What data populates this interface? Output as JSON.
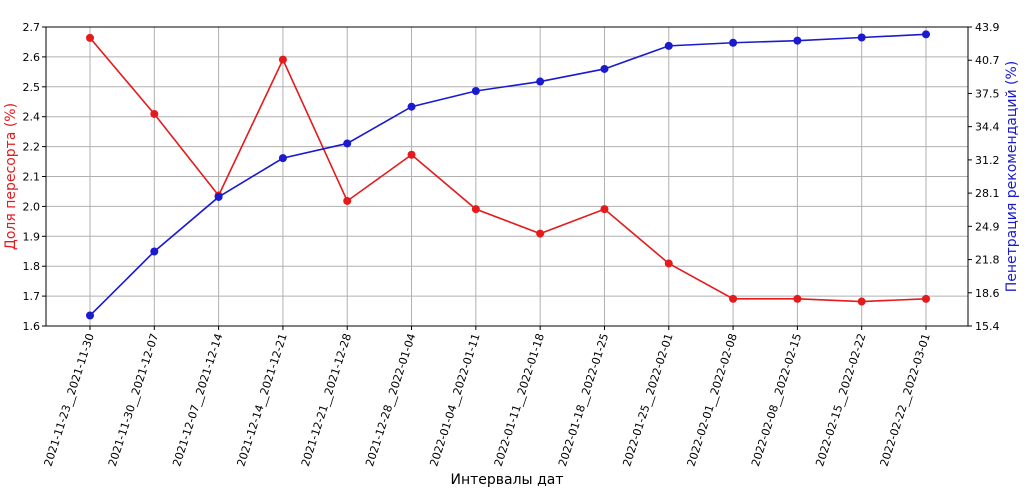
{
  "chart_data": {
    "type": "line",
    "xlabel": "Интервалы дат",
    "ylabel_left": "Доля пересорта (%)",
    "ylabel_right": "Пенетрация рекомендаций (%)",
    "categories": [
      "2021-11-23__2021-11-30",
      "2021-11-30__2021-12-07",
      "2021-12-07__2021-12-14",
      "2021-12-14__2021-12-21",
      "2021-12-21__2021-12-28",
      "2021-12-28__2022-01-04",
      "2022-01-04__2022-01-11",
      "2022-01-11__2022-01-18",
      "2022-01-18__2022-01-25",
      "2022-01-25__2022-02-01",
      "2022-02-01__2022-02-08",
      "2022-02-08__2022-02-15",
      "2022-02-15__2022-02-22",
      "2022-02-22__2022-03-01"
    ],
    "series": [
      {
        "axis": "left",
        "color": "#e41a1c",
        "values": [
          2.66,
          2.38,
          2.08,
          2.58,
          2.06,
          2.23,
          2.03,
          1.94,
          2.03,
          1.83,
          1.7,
          1.7,
          1.69,
          1.7
        ]
      },
      {
        "axis": "right",
        "color": "#1a1acf",
        "values": [
          16.4,
          22.5,
          27.7,
          31.4,
          32.8,
          36.3,
          37.8,
          38.7,
          39.9,
          42.1,
          42.4,
          42.6,
          42.9,
          43.2
        ]
      }
    ],
    "ylim_left": [
      1.6,
      2.7
    ],
    "yticks_left": [
      "1.6",
      "1.7",
      "1.8",
      "1.9",
      "2.0",
      "2.1",
      "2.2",
      "2.4",
      "2.5",
      "2.6",
      "2.7"
    ],
    "ylim_right": [
      15.4,
      43.9
    ],
    "yticks_right": [
      "15.4",
      "18.6",
      "21.8",
      "24.9",
      "28.1",
      "31.2",
      "34.4",
      "37.5",
      "40.7",
      "43.9"
    ],
    "grid": true
  }
}
